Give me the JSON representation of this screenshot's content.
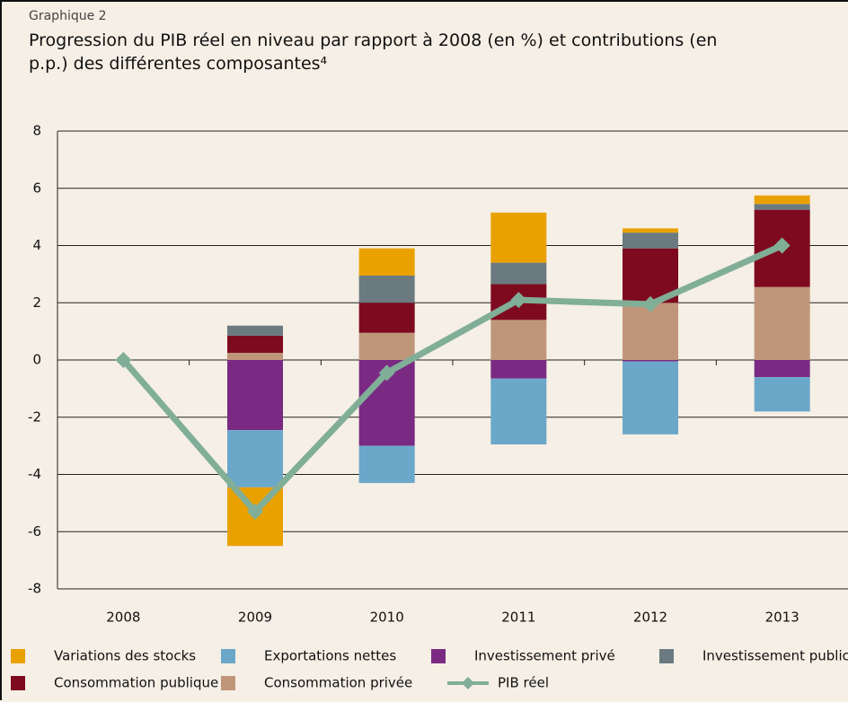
{
  "chart_data": {
    "type": "stacked_bar_line",
    "kicker": "Graphique 2",
    "title": "Progression du PIB réel en niveau par rapport à 2008 (en %) et contributions (en p.p.) des différentes composantes⁴",
    "categories": [
      "2008",
      "2009",
      "2010",
      "2011",
      "2012",
      "2013"
    ],
    "series": [
      {
        "name": "Variations des stocks",
        "color": "#e9a100",
        "values": [
          0,
          -2.05,
          0.95,
          1.75,
          0.15,
          0.3
        ]
      },
      {
        "name": "Exportations nettes",
        "color": "#6ba7c9",
        "values": [
          0,
          -2.0,
          -1.3,
          -2.3,
          -2.55,
          -1.2
        ]
      },
      {
        "name": "Investissement privé",
        "color": "#7a2a83",
        "values": [
          0,
          -2.45,
          -3.0,
          -0.65,
          -0.05,
          -0.6
        ]
      },
      {
        "name": "Investissement public",
        "color": "#6a7a80",
        "values": [
          0,
          0.35,
          0.95,
          0.75,
          0.55,
          0.2
        ]
      },
      {
        "name": "Consommation publique",
        "color": "#7e0a1f",
        "values": [
          0,
          0.6,
          1.05,
          1.25,
          1.9,
          2.7
        ]
      },
      {
        "name": "Consommation privée",
        "color": "#c0967b",
        "values": [
          0,
          0.25,
          0.95,
          1.4,
          2.0,
          2.55
        ]
      },
      {
        "name": "PIB réel",
        "color": "#80ae97",
        "type": "line",
        "values": [
          0,
          -5.3,
          -0.45,
          2.1,
          1.95,
          4.0
        ]
      }
    ],
    "ylim": [
      -8,
      8
    ],
    "yticks": [
      -8,
      -6,
      -4,
      -2,
      0,
      2,
      4,
      6,
      8
    ],
    "grid": true,
    "legend": "bottom"
  }
}
